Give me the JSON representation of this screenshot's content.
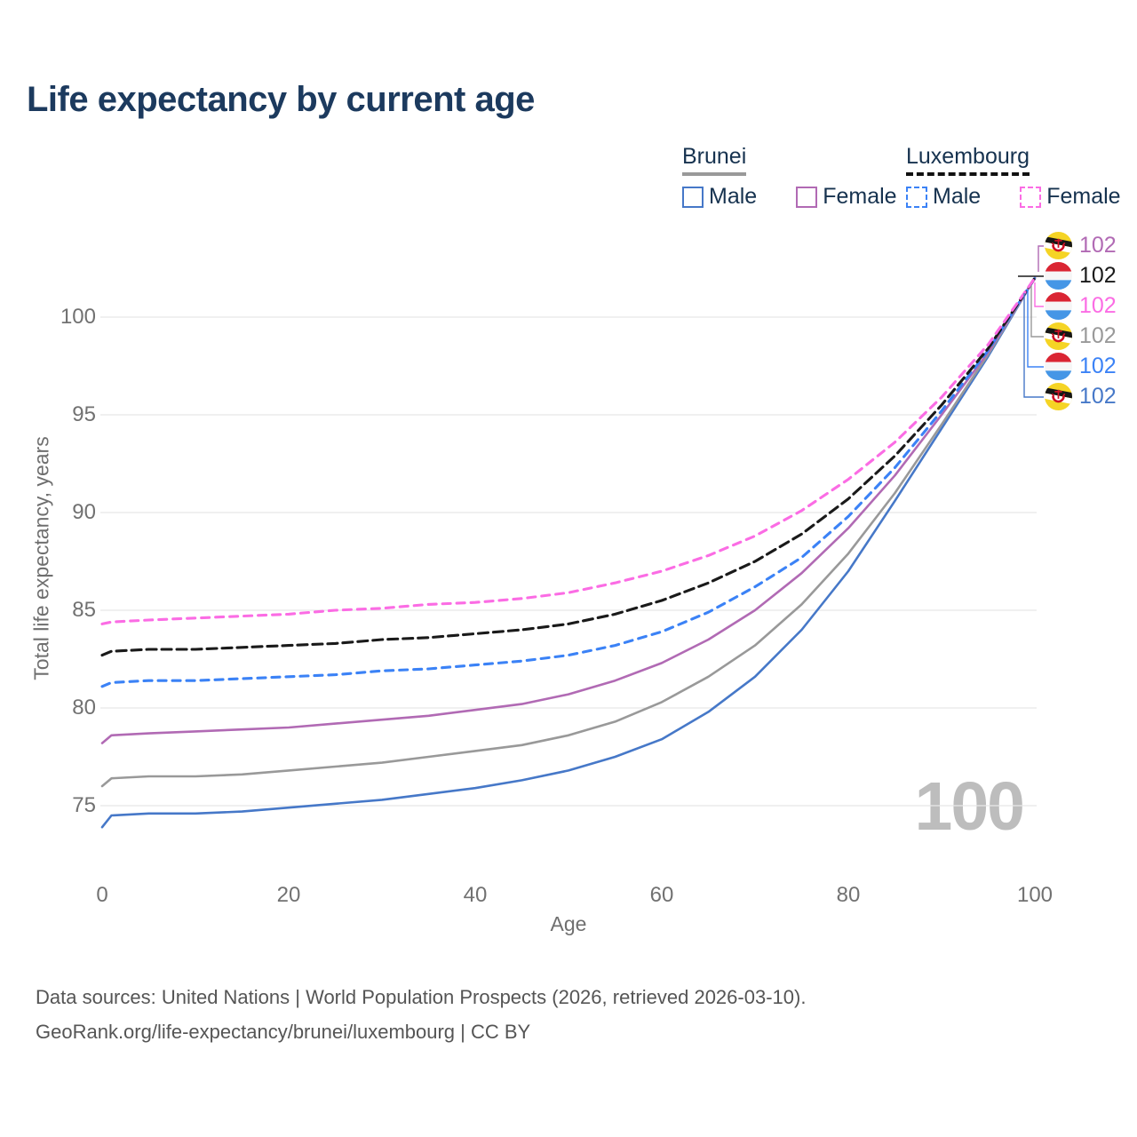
{
  "title": "Life expectancy by current age",
  "legend": {
    "groups": [
      {
        "name": "Brunei",
        "line_style": "solid",
        "underline_color": "#999999",
        "items": [
          {
            "label": "Male",
            "color": "#4678c8"
          },
          {
            "label": "Female",
            "color": "#b16ab4"
          }
        ]
      },
      {
        "name": "Luxembourg",
        "line_style": "dashed",
        "underline_color": "#111111",
        "items": [
          {
            "label": "Male",
            "color": "#3b82f6"
          },
          {
            "label": "Female",
            "color": "#fb6ce4"
          }
        ]
      }
    ]
  },
  "axes": {
    "y_title": "Total life expectancy, years",
    "x_title": "Age",
    "y_ticks": [
      100,
      95,
      90,
      85,
      80,
      75
    ],
    "x_ticks": [
      0,
      20,
      40,
      60,
      80,
      100
    ]
  },
  "watermark": "100",
  "end_labels": [
    {
      "value": "102",
      "flag": "brunei",
      "series": "Brunei Female",
      "color": "#b16ab4"
    },
    {
      "value": "102",
      "flag": "luxembourg",
      "series": "Luxembourg",
      "color": "#1a1a1a"
    },
    {
      "value": "102",
      "flag": "luxembourg",
      "series": "Luxembourg Female",
      "color": "#fb6ce4"
    },
    {
      "value": "102",
      "flag": "brunei",
      "series": "Brunei",
      "color": "#999999"
    },
    {
      "value": "102",
      "flag": "luxembourg",
      "series": "Luxembourg Male",
      "color": "#3b82f6"
    },
    {
      "value": "102",
      "flag": "brunei",
      "series": "Brunei Male",
      "color": "#4678c8"
    }
  ],
  "footer": {
    "line1": "Data sources: United Nations | World Population Prospects (2026, retrieved 2026-03-10).",
    "line2": "GeoRank.org/life-expectancy/brunei/luxembourg | CC BY"
  },
  "chart_data": {
    "type": "line",
    "title": "Life expectancy by current age",
    "xlabel": "Age",
    "ylabel": "Total life expectancy, years",
    "xlim": [
      0,
      100
    ],
    "ylim": [
      73,
      103.5
    ],
    "grid": true,
    "legend_position": "top-right",
    "x": [
      0,
      1,
      5,
      10,
      15,
      20,
      25,
      30,
      35,
      40,
      45,
      50,
      55,
      60,
      65,
      70,
      75,
      80,
      85,
      90,
      95,
      100
    ],
    "series": [
      {
        "id": "brunei-male",
        "name": "Brunei Male",
        "country": "Brunei",
        "sex": "Male",
        "dash": "solid",
        "color": "#4678c8",
        "values": [
          73.9,
          74.5,
          74.6,
          74.6,
          74.7,
          74.9,
          75.1,
          75.3,
          75.6,
          75.9,
          76.3,
          76.8,
          77.5,
          78.4,
          79.8,
          81.6,
          84.0,
          87.0,
          90.6,
          94.3,
          98.0,
          102
        ]
      },
      {
        "id": "brunei-total",
        "name": "Brunei",
        "country": "Brunei",
        "sex": "Both",
        "dash": "solid",
        "color": "#999999",
        "values": [
          76.0,
          76.4,
          76.5,
          76.5,
          76.6,
          76.8,
          77.0,
          77.2,
          77.5,
          77.8,
          78.1,
          78.6,
          79.3,
          80.3,
          81.6,
          83.2,
          85.3,
          87.9,
          91.0,
          94.5,
          98.1,
          102
        ]
      },
      {
        "id": "brunei-female",
        "name": "Brunei Female",
        "country": "Brunei",
        "sex": "Female",
        "dash": "solid",
        "color": "#b16ab4",
        "values": [
          78.2,
          78.6,
          78.7,
          78.8,
          78.9,
          79.0,
          79.2,
          79.4,
          79.6,
          79.9,
          80.2,
          80.7,
          81.4,
          82.3,
          83.5,
          85.0,
          86.9,
          89.2,
          91.9,
          95.0,
          98.2,
          102
        ]
      },
      {
        "id": "luxembourg-male",
        "name": "Luxembourg Male",
        "country": "Luxembourg",
        "sex": "Male",
        "dash": "dashed",
        "color": "#3b82f6",
        "values": [
          81.1,
          81.3,
          81.4,
          81.4,
          81.5,
          81.6,
          81.7,
          81.9,
          82.0,
          82.2,
          82.4,
          82.7,
          83.2,
          83.9,
          84.9,
          86.2,
          87.7,
          89.8,
          92.3,
          95.2,
          98.3,
          102
        ]
      },
      {
        "id": "luxembourg-total",
        "name": "Luxembourg",
        "country": "Luxembourg",
        "sex": "Both",
        "dash": "dashed",
        "color": "#1a1a1a",
        "values": [
          82.7,
          82.9,
          83.0,
          83.0,
          83.1,
          83.2,
          83.3,
          83.5,
          83.6,
          83.8,
          84.0,
          84.3,
          84.8,
          85.5,
          86.4,
          87.5,
          88.9,
          90.7,
          92.9,
          95.5,
          98.4,
          102
        ]
      },
      {
        "id": "luxembourg-female",
        "name": "Luxembourg Female",
        "country": "Luxembourg",
        "sex": "Female",
        "dash": "dashed",
        "color": "#fb6ce4",
        "values": [
          84.3,
          84.4,
          84.5,
          84.6,
          84.7,
          84.8,
          85.0,
          85.1,
          85.3,
          85.4,
          85.6,
          85.9,
          86.4,
          87.0,
          87.8,
          88.8,
          90.1,
          91.7,
          93.6,
          95.9,
          98.6,
          102
        ]
      }
    ]
  }
}
